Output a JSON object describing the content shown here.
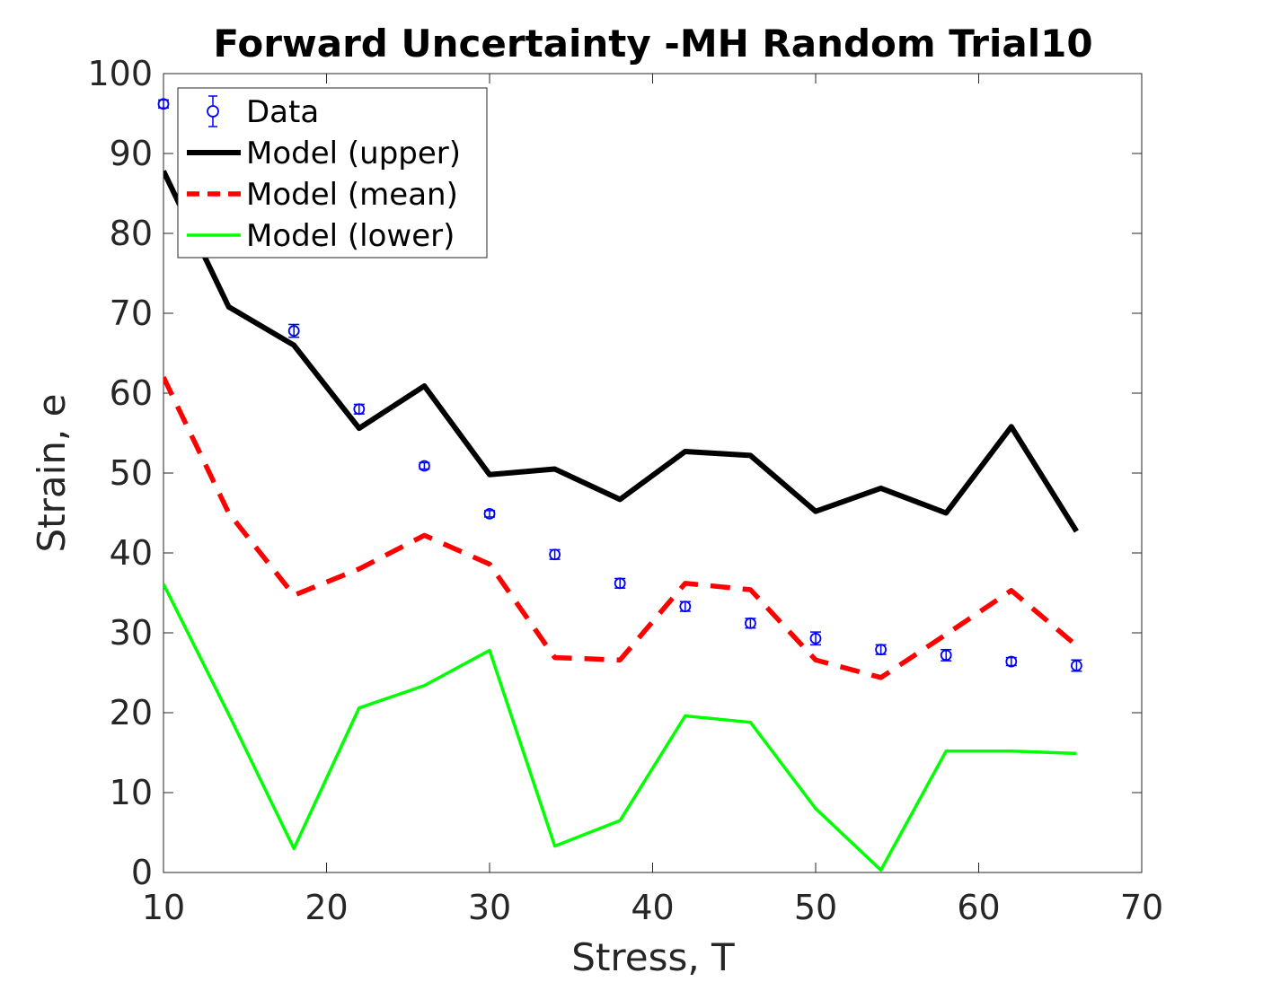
{
  "chart_data": {
    "type": "line",
    "title": "Forward Uncertainty -MH Random Trial10",
    "xlabel": "Stress, T",
    "ylabel": "Strain, e",
    "xlim": [
      10,
      70
    ],
    "ylim": [
      0,
      100
    ],
    "xticks": [
      10,
      20,
      30,
      40,
      50,
      60,
      70
    ],
    "yticks": [
      0,
      10,
      20,
      30,
      40,
      50,
      60,
      70,
      80,
      90,
      100
    ],
    "grid": false,
    "legend_position": "top-left",
    "series": [
      {
        "name": "Data",
        "kind": "errorbar",
        "color": "#0000ff",
        "x": [
          10,
          18,
          22,
          26,
          30,
          34,
          38,
          42,
          46,
          50,
          54,
          58,
          62,
          66
        ],
        "y": [
          96.2,
          67.8,
          58.0,
          50.9,
          44.9,
          39.8,
          36.2,
          33.3,
          31.2,
          29.3,
          27.9,
          27.2,
          26.4,
          25.9
        ],
        "err": [
          0.5,
          0.8,
          0.6,
          0.4,
          0.4,
          0.6,
          0.6,
          0.6,
          0.6,
          0.8,
          0.6,
          0.7,
          0.5,
          0.7
        ]
      },
      {
        "name": "Model (upper)",
        "kind": "line",
        "color": "#000000",
        "style": "solid",
        "x": [
          10,
          14,
          18,
          22,
          26,
          30,
          34,
          38,
          42,
          46,
          50,
          54,
          58,
          62,
          66
        ],
        "y": [
          87.8,
          70.8,
          66.0,
          55.6,
          60.9,
          49.8,
          50.5,
          46.7,
          52.7,
          52.2,
          45.2,
          48.1,
          45.0,
          55.8,
          42.7
        ]
      },
      {
        "name": "Model (mean)",
        "kind": "line",
        "color": "#ff0000",
        "style": "dashed",
        "x": [
          10,
          14,
          18,
          22,
          26,
          30,
          34,
          38,
          42,
          46,
          50,
          54,
          58,
          62,
          66
        ],
        "y": [
          62.0,
          45.0,
          34.7,
          38.0,
          42.2,
          38.6,
          26.9,
          26.6,
          36.2,
          35.4,
          26.6,
          24.4,
          29.8,
          35.3,
          28.4
        ]
      },
      {
        "name": "Model (lower)",
        "kind": "line",
        "color": "#00ff00",
        "style": "solid",
        "x": [
          10,
          14,
          18,
          22,
          26,
          30,
          34,
          38,
          42,
          46,
          50,
          54,
          58,
          62,
          66
        ],
        "y": [
          36.1,
          19.8,
          3.0,
          20.6,
          23.4,
          27.8,
          3.3,
          6.5,
          19.6,
          18.8,
          8.0,
          0.3,
          15.2,
          15.2,
          14.9
        ]
      }
    ]
  }
}
